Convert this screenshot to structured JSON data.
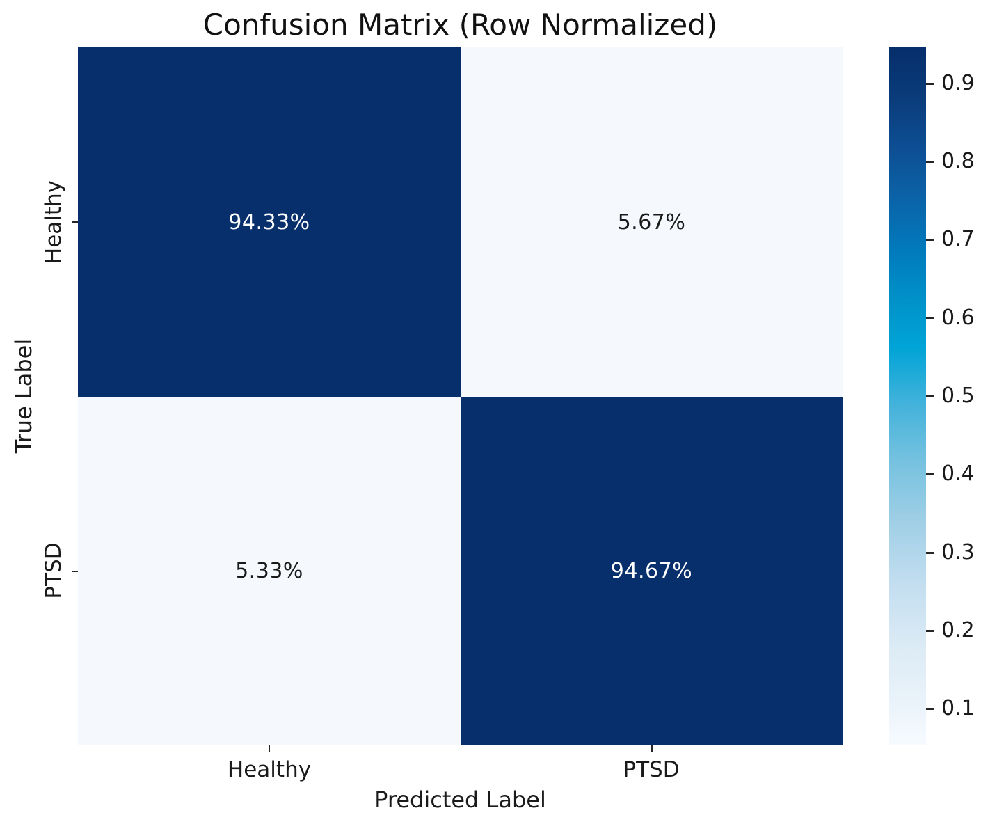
{
  "figure": {
    "title": "Confusion Matrix (Row Normalized)",
    "xlabel": "Predicted Label",
    "ylabel": "True Label"
  },
  "chart_data": {
    "type": "heatmap",
    "title": "Confusion Matrix (Row Normalized)",
    "xlabel": "Predicted Label",
    "ylabel": "True Label",
    "x_categories": [
      "Healthy",
      "PTSD"
    ],
    "y_categories": [
      "Healthy",
      "PTSD"
    ],
    "matrix_row_normalized": [
      [
        0.9433,
        0.0567
      ],
      [
        0.0533,
        0.9467
      ]
    ],
    "cell_labels": [
      [
        "94.33%",
        "5.67%"
      ],
      [
        "5.33%",
        "94.67%"
      ]
    ],
    "cell_colors": [
      [
        "#062f6b",
        "#f5f9fd"
      ],
      [
        "#f5f9fd",
        "#062f6b"
      ]
    ],
    "cell_text_colors": [
      [
        "#ffffff",
        "#1a1a1a"
      ],
      [
        "#1a1a1a",
        "#ffffff"
      ]
    ],
    "colormap_name": "Blues",
    "legend_position": "right-colorbar",
    "grid": false,
    "colorbar": {
      "vmin": 0.0533,
      "vmax": 0.9467,
      "tick_labels": [
        "0.1",
        "0.2",
        "0.3",
        "0.4",
        "0.5",
        "0.6",
        "0.7",
        "0.8",
        "0.9"
      ],
      "gradient_stops_bottom_to_top": [
        {
          "pos": 0.0,
          "color": "#f7fbff"
        },
        {
          "pos": 0.06,
          "color": "#eaf3fa"
        },
        {
          "pos": 0.14,
          "color": "#dcebf5"
        },
        {
          "pos": 0.23,
          "color": "#c3def0"
        },
        {
          "pos": 0.32,
          "color": "#a0cfe6"
        },
        {
          "pos": 0.41,
          "color": "#74c1df"
        },
        {
          "pos": 0.49,
          "color": "#42b2db"
        },
        {
          "pos": 0.57,
          "color": "#00a4d6"
        },
        {
          "pos": 0.64,
          "color": "#0091c8"
        },
        {
          "pos": 0.71,
          "color": "#017abc"
        },
        {
          "pos": 0.79,
          "color": "#0c61a6"
        },
        {
          "pos": 0.86,
          "color": "#0d4d92"
        },
        {
          "pos": 0.93,
          "color": "#0a3b7a"
        },
        {
          "pos": 1.0,
          "color": "#062f6b"
        }
      ]
    }
  }
}
